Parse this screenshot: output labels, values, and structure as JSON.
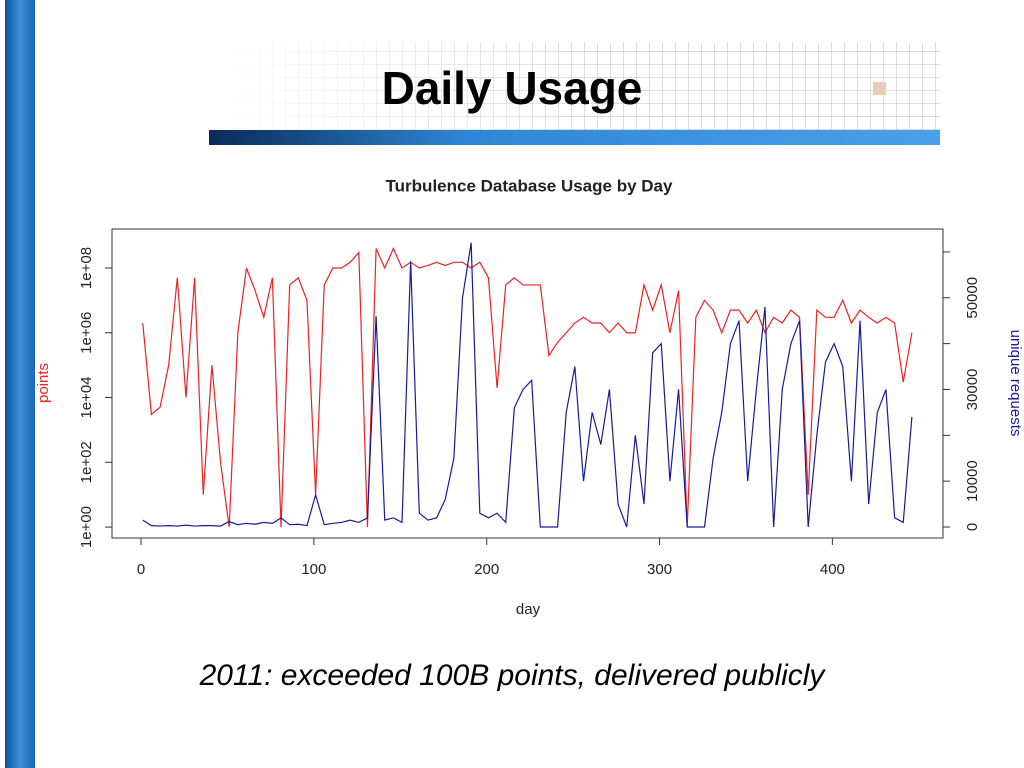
{
  "slide": {
    "title": "Daily Usage",
    "caption": "2011: exceeded 100B points, delivered publicly"
  },
  "chart_data": {
    "type": "line",
    "title": "Turbulence Database Usage by Day",
    "xlabel": "day",
    "ylabel": "points",
    "y2label": "unique requests",
    "log_y": true,
    "xlim": [
      -16.8,
      464
    ],
    "xticks": [
      0,
      100,
      200,
      300,
      400
    ],
    "ylim": [
      0.46,
      1600000000.0
    ],
    "yticks": [
      {
        "value": 1,
        "label": "1e+00"
      },
      {
        "value": 100,
        "label": "1e+02"
      },
      {
        "value": 10000,
        "label": "1e+04"
      },
      {
        "value": 1000000,
        "label": "1e+06"
      },
      {
        "value": 100000000,
        "label": "1e+08"
      }
    ],
    "y2lim": [
      -2400,
      65000
    ],
    "y2ticks": [
      0,
      10000,
      30000,
      50000
    ],
    "y2minor_ticks": [
      20000,
      40000,
      60000
    ],
    "x": [
      1,
      6,
      11,
      16,
      21,
      26,
      31,
      36,
      41,
      46,
      51,
      56,
      61,
      66,
      71,
      76,
      81,
      86,
      91,
      96,
      101,
      106,
      111,
      116,
      121,
      126,
      131,
      136,
      141,
      146,
      151,
      156,
      161,
      166,
      171,
      176,
      181,
      186,
      191,
      196,
      201,
      206,
      211,
      216,
      221,
      226,
      231,
      236,
      241,
      246,
      251,
      256,
      261,
      266,
      271,
      276,
      281,
      286,
      291,
      296,
      301,
      306,
      311,
      316,
      321,
      326,
      331,
      336,
      341,
      346,
      351,
      356,
      361,
      366,
      371,
      376,
      381,
      386,
      391,
      396,
      401,
      406,
      411,
      416,
      421,
      426,
      431,
      436,
      441,
      446
    ],
    "series": [
      {
        "name": "points",
        "color": "#ee2222",
        "values": [
          2000000.0,
          3000.0,
          5000.0,
          100000.0,
          50000000.0,
          10000.0,
          50000000.0,
          10,
          100000.0,
          100,
          1,
          1000000.0,
          100000000.0,
          20000000.0,
          3000000.0,
          50000000.0,
          1,
          30000000.0,
          50000000.0,
          10000000.0,
          10,
          30000000.0,
          100000000.0,
          100000000.0,
          150000000.0,
          300000000.0,
          1,
          400000000.0,
          100000000.0,
          400000000.0,
          100000000.0,
          150000000.0,
          100000000.0,
          120000000.0,
          150000000.0,
          120000000.0,
          150000000.0,
          150000000.0,
          100000000.0,
          150000000.0,
          50000000.0,
          20000.0,
          30000000.0,
          50000000.0,
          30000000.0,
          30000000.0,
          30000000.0,
          200000.0,
          500000.0,
          1000000.0,
          2000000.0,
          3000000.0,
          2000000.0,
          2000000.0,
          1000000.0,
          2000000.0,
          1000000.0,
          1000000.0,
          30000000.0,
          5000000.0,
          30000000.0,
          1000000.0,
          20000000.0,
          1,
          3000000.0,
          10000000.0,
          5000000.0,
          1000000.0,
          5000000.0,
          5000000.0,
          2000000.0,
          5000000.0,
          1000000.0,
          3000000.0,
          2000000.0,
          5000000.0,
          3000000.0,
          10,
          5000000.0,
          3000000.0,
          3000000.0,
          10000000.0,
          2000000.0,
          5000000.0,
          3000000.0,
          2000000.0,
          3000000.0,
          2000000.0,
          30000.0,
          1000000.0
        ]
      },
      {
        "name": "unique requests",
        "color": "#1a1a99",
        "axis": "y2",
        "values": [
          1500,
          300,
          200,
          300,
          200,
          400,
          200,
          300,
          300,
          200,
          1200,
          500,
          800,
          600,
          1000,
          800,
          2000,
          500,
          600,
          300,
          7000,
          500,
          800,
          1000,
          1500,
          1000,
          2000,
          46000,
          1500,
          2000,
          1000,
          58000,
          3000,
          1500,
          2000,
          6000,
          15000,
          50000,
          62000,
          3000,
          2000,
          3000,
          1000,
          26000,
          30000,
          32000,
          0,
          0,
          0,
          25000,
          35000,
          10000,
          25000,
          18000,
          30000,
          5000,
          0,
          20000,
          5000,
          38000,
          40000,
          10000,
          30000,
          0,
          0,
          0,
          15000,
          25000,
          40000,
          45000,
          10000,
          30000,
          48000,
          0,
          30000,
          40000,
          45000,
          0,
          20000,
          36000,
          40000,
          35000,
          10000,
          45000,
          5000,
          25000,
          30000,
          2000,
          1000,
          24000
        ]
      }
    ]
  }
}
